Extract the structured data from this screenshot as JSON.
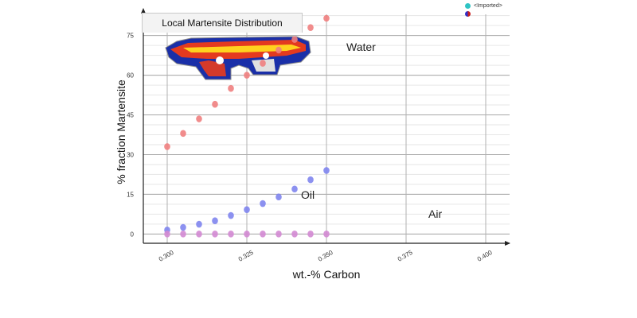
{
  "chart_data": {
    "type": "scatter",
    "title": "Local Martensite Distribution",
    "xlabel": "wt.-% Carbon",
    "ylabel": "% fraction Martensite",
    "xlim": [
      0.2925,
      0.4075
    ],
    "ylim": [
      -3.5,
      83
    ],
    "x_ticks": [
      "0.300",
      "0.325",
      "0.350",
      "0.375",
      "0.400"
    ],
    "y_ticks": [
      "0",
      "15",
      "30",
      "45",
      "60",
      "75"
    ],
    "grid": true,
    "legend": [
      {
        "label": "<Imported>",
        "color": "#2ec4c4"
      },
      {
        "label": "",
        "color": "#3030c8"
      }
    ],
    "annotations": [
      "Water",
      "Oil",
      "Air"
    ],
    "x": [
      0.3,
      0.305,
      0.31,
      0.315,
      0.32,
      0.325,
      0.33,
      0.335,
      0.34,
      0.345,
      0.35
    ],
    "series": [
      {
        "values": [
          33,
          38,
          43.5,
          49,
          55,
          60,
          64.5,
          69.5,
          73.5,
          78,
          81.5
        ],
        "color": "#f07f7f"
      },
      {
        "values": [
          1.5,
          2.5,
          3.7,
          5,
          7,
          9.2,
          11.5,
          14,
          17,
          20.5,
          24
        ],
        "color": "#7f85ee"
      },
      {
        "values": [
          0,
          0,
          0,
          0,
          0,
          0,
          0,
          0,
          0,
          0,
          0
        ],
        "color": "#d38ad3"
      }
    ]
  }
}
